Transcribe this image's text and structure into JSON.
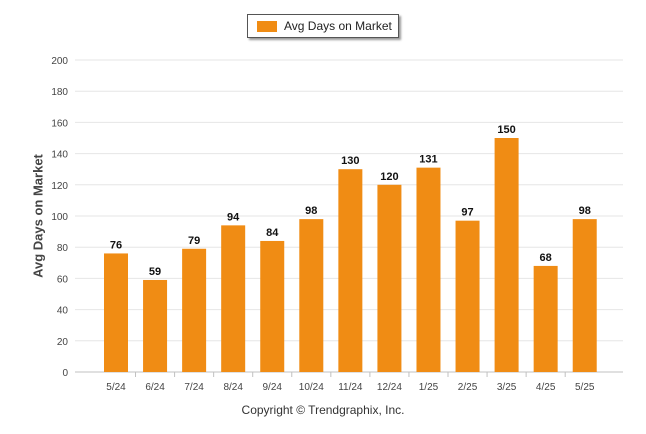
{
  "colors": {
    "bar": "#F08C14",
    "grid": "#e6e6e6",
    "axis": "#c0c0c0",
    "text": "#444444"
  },
  "legend": {
    "label": "Avg Days on Market"
  },
  "footer": {
    "copyright": "Copyright © Trendgraphix, Inc."
  },
  "chart_data": {
    "type": "bar",
    "categories": [
      "5/24",
      "6/24",
      "7/24",
      "8/24",
      "9/24",
      "10/24",
      "11/24",
      "12/24",
      "1/25",
      "2/25",
      "3/25",
      "4/25",
      "5/25"
    ],
    "series": [
      {
        "name": "Avg Days on Market",
        "values": [
          76,
          59,
          79,
          94,
          84,
          98,
          130,
          120,
          131,
          97,
          150,
          68,
          98
        ]
      }
    ],
    "title": "",
    "xlabel": "",
    "ylabel": "Avg Days on Market",
    "ylim": [
      0,
      200
    ],
    "yticks": [
      0,
      20,
      40,
      60,
      80,
      100,
      120,
      140,
      160,
      180,
      200
    ],
    "grid": true,
    "legend_position": "top-center",
    "data_labels": true
  }
}
